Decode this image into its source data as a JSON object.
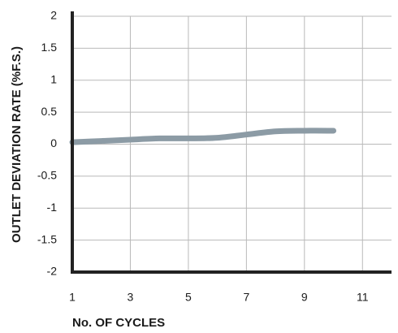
{
  "chart_data": {
    "type": "line",
    "title": "",
    "xlabel": "No. OF CYCLES",
    "ylabel": "OUTLET DEVIATION RATE (%F.S.)",
    "xlim": [
      1,
      12
    ],
    "ylim": [
      -2,
      2
    ],
    "x_ticks": [
      1,
      3,
      5,
      7,
      9,
      11
    ],
    "x_tick_labels": [
      "1",
      "3",
      "5",
      "7",
      "9",
      "11"
    ],
    "y_ticks": [
      2,
      1.5,
      1,
      0.5,
      0,
      -0.5,
      -1,
      -1.5,
      -2
    ],
    "y_tick_labels": [
      "2",
      "1.5",
      "1",
      "0.5",
      "0",
      "-0.5",
      "-1",
      "-1.5",
      "-2"
    ],
    "grid": true,
    "series": [
      {
        "color": "#8c9ba5",
        "x": [
          1,
          2,
          3,
          4,
          5,
          6,
          7,
          8,
          9,
          10
        ],
        "y": [
          0.03,
          0.05,
          0.07,
          0.09,
          0.09,
          0.1,
          0.15,
          0.2,
          0.21,
          0.21
        ]
      }
    ]
  }
}
